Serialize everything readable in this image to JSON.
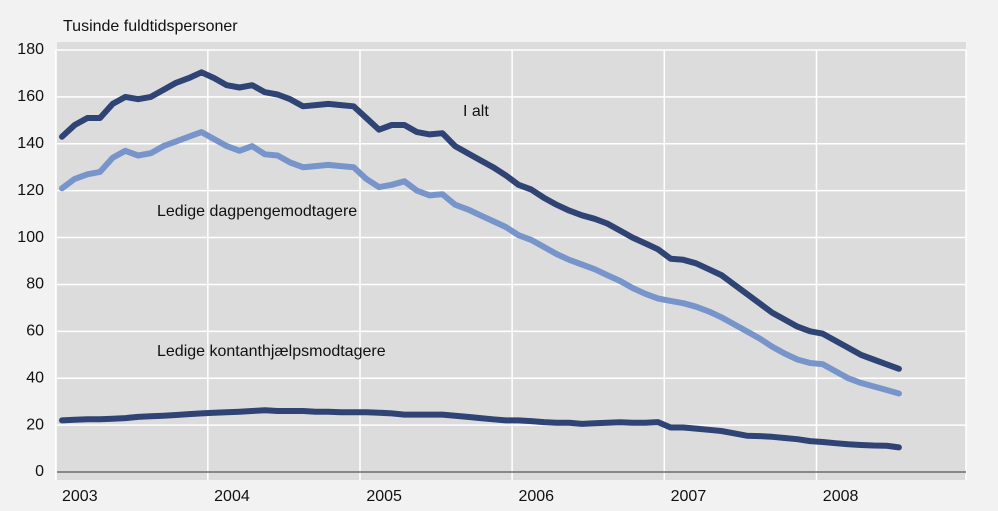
{
  "chart_data": {
    "type": "line",
    "y_label": "Tusinde fuldtidspersoner",
    "categories": [
      "2003",
      null,
      null,
      null,
      null,
      null,
      null,
      null,
      null,
      null,
      null,
      null,
      "2004",
      null,
      null,
      null,
      null,
      null,
      null,
      null,
      null,
      null,
      null,
      null,
      "2005",
      null,
      null,
      null,
      null,
      null,
      null,
      null,
      null,
      null,
      null,
      null,
      "2006",
      null,
      null,
      null,
      null,
      null,
      null,
      null,
      null,
      null,
      null,
      null,
      "2007",
      null,
      null,
      null,
      null,
      null,
      null,
      null,
      null,
      null,
      null,
      null,
      "2008",
      null,
      null,
      null,
      null,
      null,
      null
    ],
    "ylim": [
      0,
      180
    ],
    "yticks": [
      0,
      20,
      40,
      60,
      80,
      100,
      120,
      140,
      160,
      180
    ],
    "grid": true,
    "series": [
      {
        "name": "I alt",
        "color": "#2f4474",
        "values": [
          143,
          148,
          151,
          151,
          157,
          160,
          159,
          160,
          163,
          166,
          168,
          170.5,
          168,
          165,
          164,
          165,
          162,
          161,
          159,
          156,
          156.5,
          157,
          156.5,
          156,
          151,
          146,
          148,
          148,
          145,
          144,
          144.5,
          139,
          136,
          133,
          130,
          126.5,
          122.5,
          120.5,
          117,
          114,
          111.5,
          109.5,
          108,
          106,
          103,
          100,
          97.5,
          95,
          91,
          90.5,
          89,
          86.5,
          84,
          80,
          76,
          72,
          68,
          65,
          62,
          60,
          59,
          56,
          53,
          50,
          48,
          46,
          44
        ]
      },
      {
        "name": "Ledige dagpengemodtagere",
        "color": "#7895cb",
        "values": [
          121,
          125,
          127,
          128,
          134,
          137,
          135,
          136,
          139,
          141,
          143,
          145,
          142,
          139,
          137,
          139,
          135.5,
          135,
          132,
          130,
          130.5,
          131,
          130.5,
          130,
          125,
          121.5,
          122.5,
          124,
          120,
          118,
          118.5,
          114,
          112,
          109.5,
          107,
          104.5,
          101,
          99,
          96,
          93,
          90.5,
          88.5,
          86.5,
          84,
          81.5,
          78.5,
          76,
          74,
          73,
          72,
          70.5,
          68.5,
          66,
          63,
          60,
          57,
          53.5,
          50.5,
          48,
          46.5,
          46,
          43,
          40,
          38,
          36.5,
          35,
          33.5
        ]
      },
      {
        "name": "Ledige kontanthjælpsmodtagere",
        "color": "#2f4474",
        "values": [
          22,
          22.3,
          22.5,
          22.5,
          22.7,
          23,
          23.5,
          23.8,
          24,
          24.3,
          24.7,
          25,
          25.3,
          25.5,
          25.7,
          26,
          26.3,
          26,
          26,
          26,
          25.7,
          25.7,
          25.5,
          25.5,
          25.5,
          25.3,
          25,
          24.5,
          24.5,
          24.5,
          24.5,
          24,
          23.5,
          23,
          22.5,
          22,
          22,
          21.7,
          21.3,
          21,
          21,
          20.5,
          20.8,
          21,
          21.2,
          21,
          21,
          21.3,
          19,
          19,
          18.5,
          18,
          17.5,
          16.5,
          15.5,
          15.3,
          15,
          14.5,
          14,
          13.2,
          12.8,
          12.3,
          11.8,
          11.5,
          11.3,
          11.2,
          10.5
        ]
      }
    ]
  }
}
